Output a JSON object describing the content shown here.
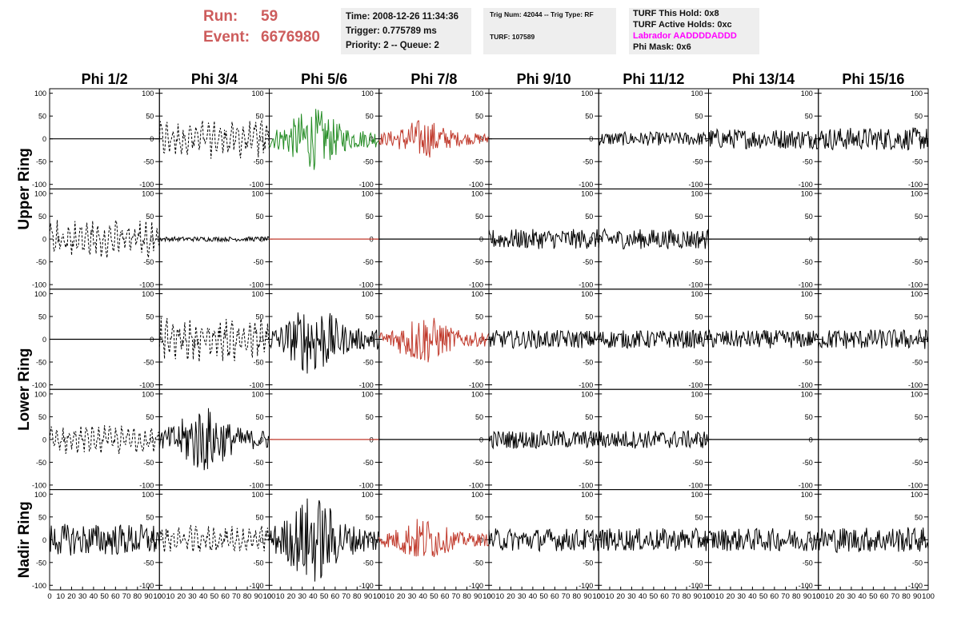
{
  "header": {
    "run_label": "Run:",
    "run_value": "59",
    "event_label": "Event:",
    "event_value": "6676980",
    "time": "Time: 2008-12-26 11:34:36",
    "trigger": "Trigger: 0.775789 ms",
    "priority": "Priority: 2 -- Queue: 2",
    "trig_num": "Trig Num: 42044 -- Trig Type: RF",
    "turf": "TURF: 107589",
    "turf_this_hold": "TURF This Hold: 0x8",
    "turf_active_holds": "TURF Active Holds: 0xc",
    "labrador": "Labrador AADDDDADDD",
    "phi_mask": "Phi Mask: 0x6"
  },
  "colors": {
    "run_text": "#cd5c5c",
    "labrador_text": "#ff00ff",
    "wave_green": "#228b22",
    "wave_red": "#c0392b",
    "wave_black": "#000000"
  },
  "chart_data": {
    "type": "line",
    "title": "",
    "columns": [
      "Phi 1/2",
      "Phi 3/4",
      "Phi 5/6",
      "Phi 7/8",
      "Phi 9/10",
      "Phi 11/12",
      "Phi 13/14",
      "Phi 15/16"
    ],
    "row_labels": [
      "Upper Ring",
      "Lower Ring",
      "Nadir Ring"
    ],
    "rows": 5,
    "xlim": [
      0,
      100
    ],
    "ylim": [
      -110,
      110
    ],
    "x_ticks": [
      0,
      10,
      20,
      30,
      40,
      50,
      60,
      70,
      80,
      90,
      100
    ],
    "x_tick_labels": [
      "0",
      "10",
      "20",
      "30",
      "40",
      "50",
      "60",
      "70",
      "80",
      "90",
      "100"
    ],
    "y_ticks": [
      100,
      50,
      0,
      -50,
      -100
    ],
    "y_tick_labels": [
      "100",
      "50",
      "0",
      "-50",
      "-100"
    ],
    "panels": [
      [
        {
          "style": "flat",
          "color": "black",
          "amp": 0
        },
        {
          "style": "dashed",
          "color": "black",
          "amp": 40
        },
        {
          "style": "burst",
          "color": "green",
          "amp": 55
        },
        {
          "style": "burst",
          "color": "red",
          "amp": 35
        },
        {
          "style": "flat",
          "color": "black",
          "amp": 0
        },
        {
          "style": "noise",
          "color": "black",
          "amp": 15
        },
        {
          "style": "noise",
          "color": "black",
          "amp": 22
        },
        {
          "style": "noise",
          "color": "black",
          "amp": 25
        }
      ],
      [
        {
          "style": "dashed",
          "color": "black",
          "amp": 40
        },
        {
          "style": "noise",
          "color": "black",
          "amp": 5
        },
        {
          "style": "flat",
          "color": "red",
          "amp": 0
        },
        {
          "style": "flat",
          "color": "black",
          "amp": 0
        },
        {
          "style": "noise",
          "color": "black",
          "amp": 22
        },
        {
          "style": "noise",
          "color": "black",
          "amp": 22
        },
        {
          "style": "flat",
          "color": "black",
          "amp": 0
        },
        {
          "style": "flat",
          "color": "black",
          "amp": 0
        }
      ],
      [
        {
          "style": "flat",
          "color": "black",
          "amp": 0
        },
        {
          "style": "dashed",
          "color": "black",
          "amp": 45
        },
        {
          "style": "burst",
          "color": "black",
          "amp": 65
        },
        {
          "style": "burst",
          "color": "red",
          "amp": 45
        },
        {
          "style": "noise",
          "color": "black",
          "amp": 20
        },
        {
          "style": "noise",
          "color": "black",
          "amp": 20
        },
        {
          "style": "noise",
          "color": "black",
          "amp": 20
        },
        {
          "style": "noise",
          "color": "black",
          "amp": 22
        }
      ],
      [
        {
          "style": "dashed",
          "color": "black",
          "amp": 30
        },
        {
          "style": "burst",
          "color": "black",
          "amp": 60
        },
        {
          "style": "flat",
          "color": "red",
          "amp": 0
        },
        {
          "style": "flat",
          "color": "black",
          "amp": 0
        },
        {
          "style": "noise",
          "color": "black",
          "amp": 20
        },
        {
          "style": "noise",
          "color": "black",
          "amp": 20
        },
        {
          "style": "flat",
          "color": "black",
          "amp": 0
        },
        {
          "style": "flat",
          "color": "black",
          "amp": 0
        }
      ],
      [
        {
          "style": "noise",
          "color": "black",
          "amp": 35
        },
        {
          "style": "dashed",
          "color": "black",
          "amp": 30
        },
        {
          "style": "burst",
          "color": "black",
          "amp": 80
        },
        {
          "style": "burst",
          "color": "red",
          "amp": 40
        },
        {
          "style": "noise",
          "color": "black",
          "amp": 25
        },
        {
          "style": "noise",
          "color": "black",
          "amp": 25
        },
        {
          "style": "noise",
          "color": "black",
          "amp": 25
        },
        {
          "style": "noise",
          "color": "black",
          "amp": 28
        }
      ]
    ]
  }
}
